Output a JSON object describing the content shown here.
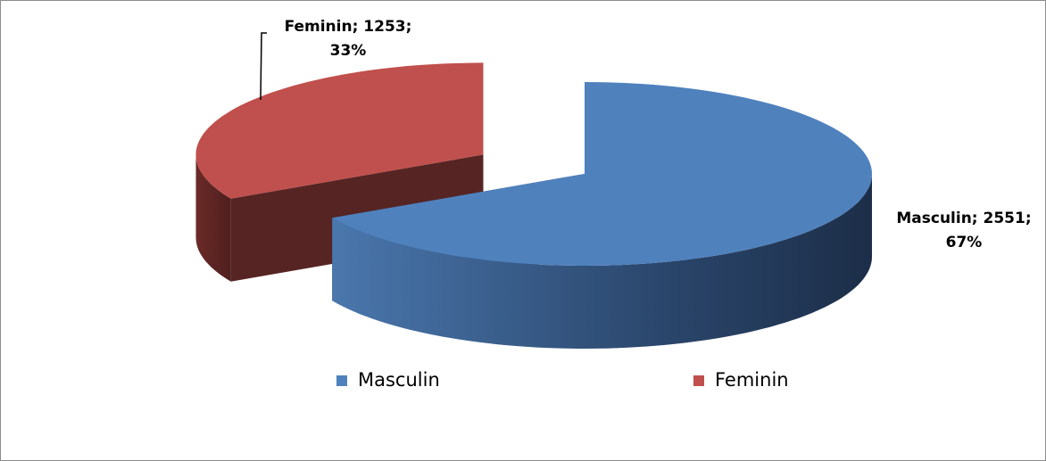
{
  "chart_data": {
    "type": "pie3d",
    "categories": [
      "Masculin",
      "Feminin"
    ],
    "values": [
      2551,
      1253
    ],
    "value_labels": [
      [
        "Masculin; 2551;",
        "67%"
      ],
      [
        "Feminin; 1253;",
        "33%"
      ]
    ],
    "colors": [
      "#4f81bd",
      "#c0504d"
    ],
    "exploded": [
      false,
      true
    ],
    "legend": "bottom"
  }
}
